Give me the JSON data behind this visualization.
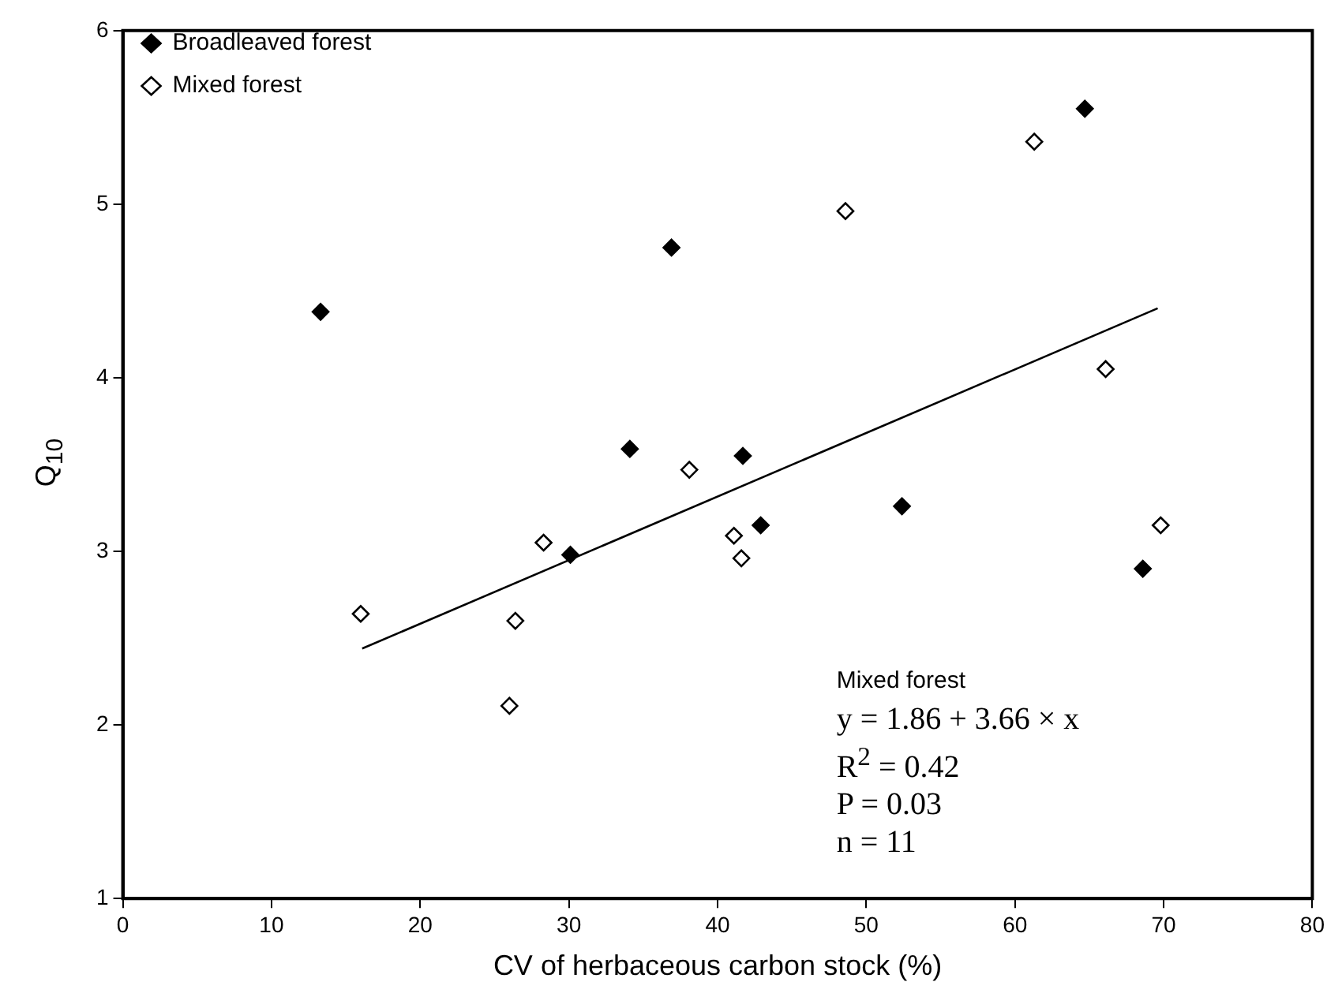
{
  "chart_data": {
    "type": "scatter",
    "xlabel": "CV of herbaceous carbon stock (%)",
    "ylabel": "Q$_{10}$",
    "xlim": [
      0,
      80
    ],
    "xticks": [
      0,
      10,
      20,
      30,
      40,
      50,
      60,
      70,
      80
    ],
    "ylim": [
      1,
      6
    ],
    "yticks": [
      1,
      2,
      3,
      4,
      5,
      6
    ],
    "grid": false,
    "legend": "top left",
    "marker": "diamond",
    "series": [
      {
        "name": "Broadleaved forest",
        "color": "#000000",
        "x": [
          13.3,
          36.9,
          34.1,
          30.1,
          41.7,
          42.9,
          52.4,
          64.7,
          68.6
        ],
        "values": [
          4.38,
          4.75,
          3.59,
          2.98,
          3.55,
          3.15,
          3.26,
          5.55,
          2.9
        ]
      },
      {
        "name": "Mixed forest",
        "color": "#000000",
        "x": [
          16.0,
          26.4,
          26.0,
          28.3,
          38.1,
          41.1,
          41.6,
          48.6,
          61.3,
          66.1,
          69.8
        ],
        "values": [
          2.64,
          2.6,
          2.11,
          3.05,
          3.47,
          3.09,
          2.96,
          4.96,
          5.36,
          4.05,
          3.15
        ]
      },
      {
        "type": "line",
        "color": "#000000",
        "marker": "none",
        "x": [
          16.1,
          69.6
        ],
        "values": [
          2.44,
          4.4
        ]
      }
    ],
    "annotations": [
      "Mixed forest",
      "y = 1.86 + 3.66 × x",
      "R$^{2}$ = 0.42",
      "P = 0.03",
      "n = 11"
    ]
  }
}
